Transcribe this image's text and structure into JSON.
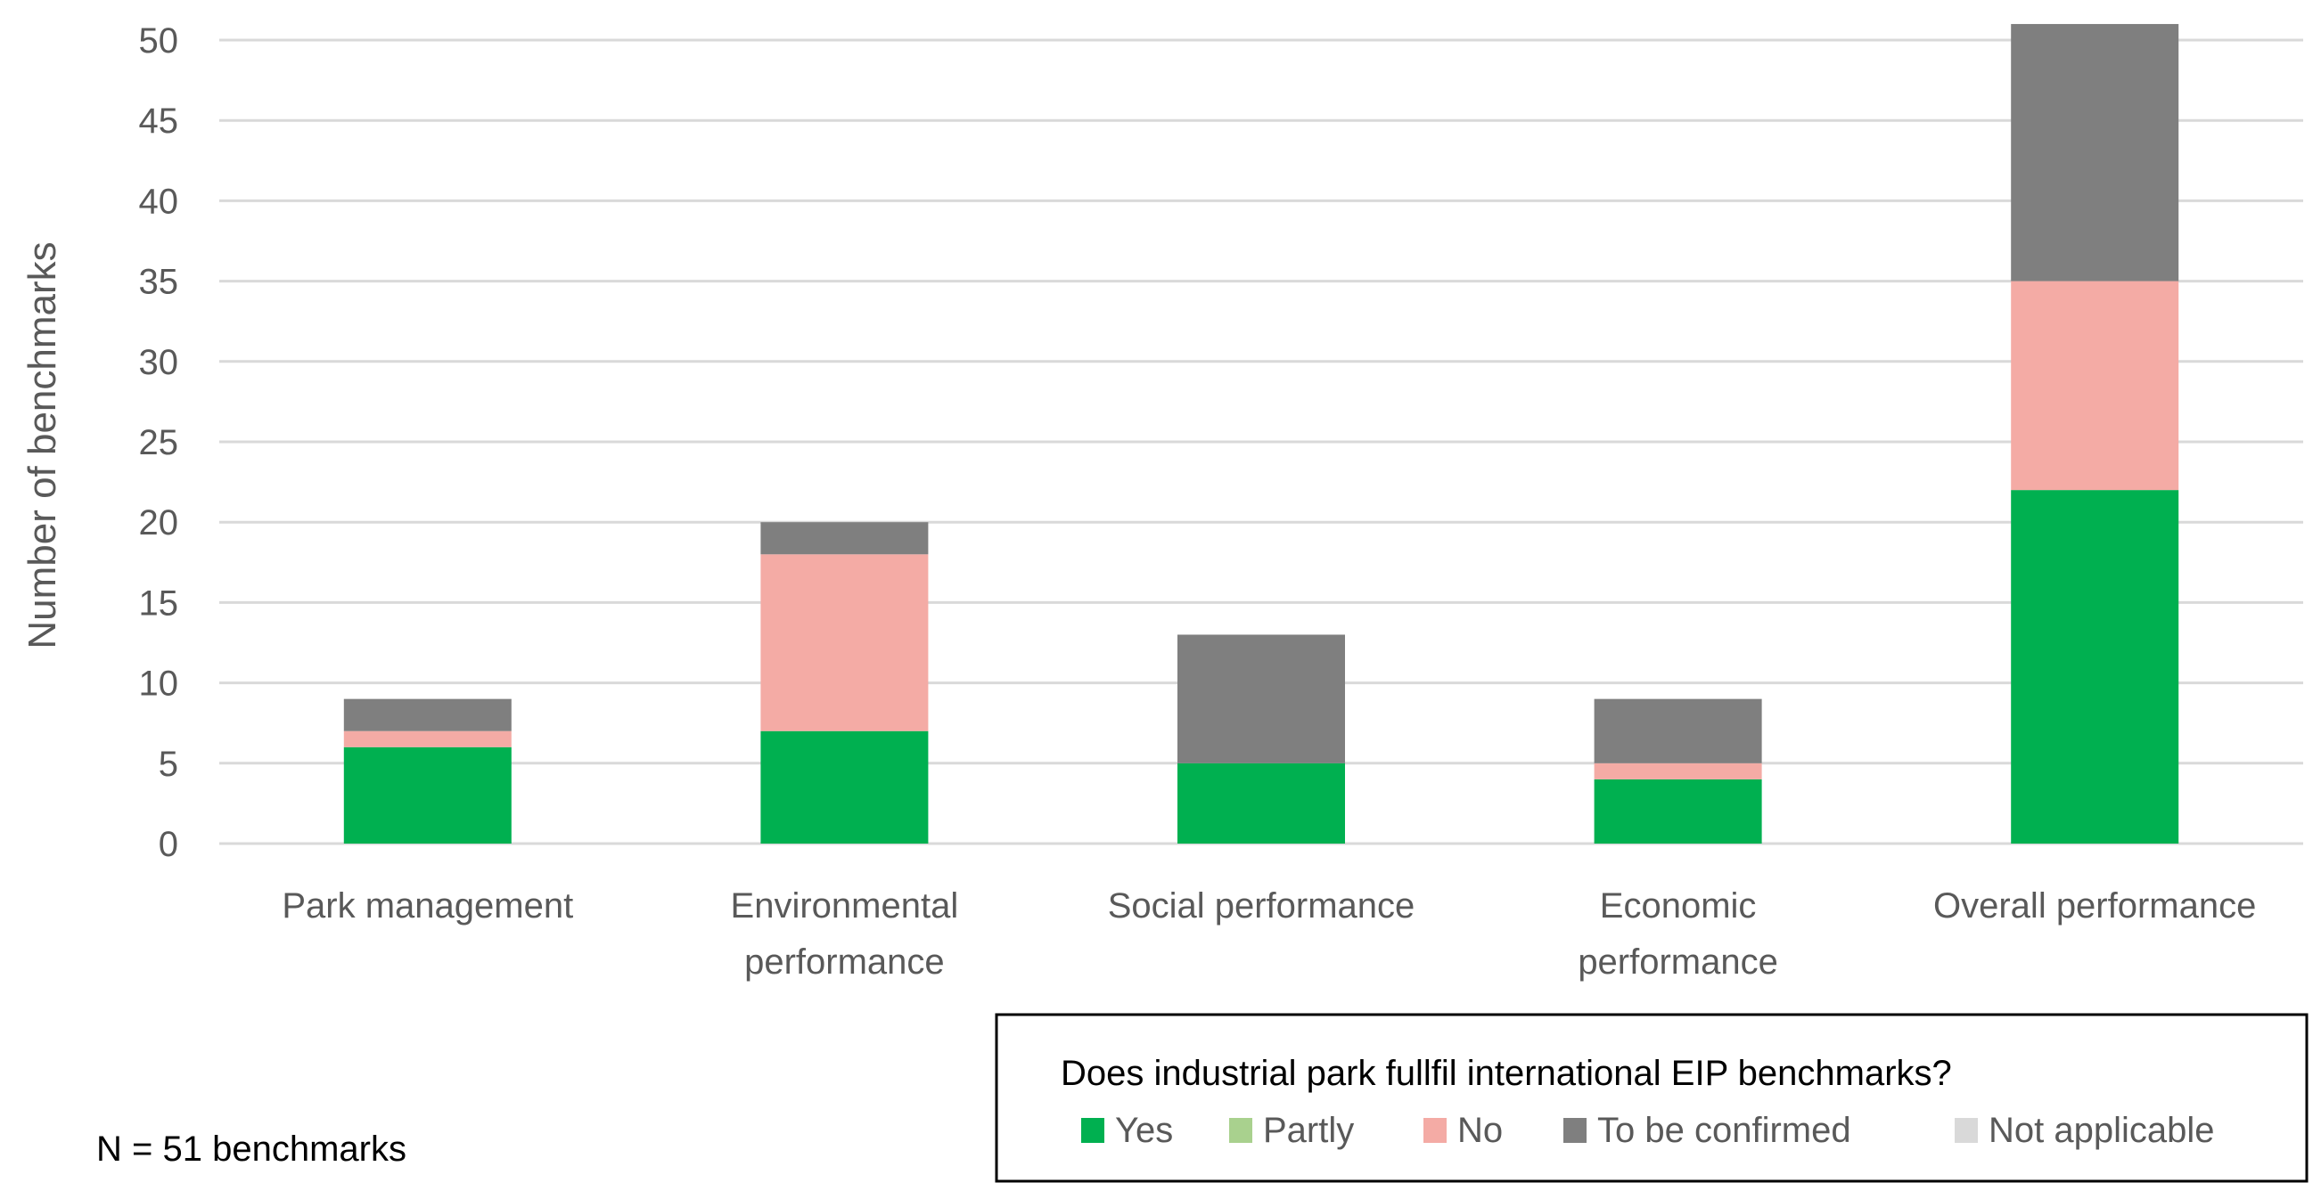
{
  "chart_data": {
    "type": "bar",
    "stacked": true,
    "categories": [
      [
        "Park management"
      ],
      [
        "Environmental",
        "performance"
      ],
      [
        "Social performance"
      ],
      [
        "Economic",
        "performance"
      ],
      [
        "Overall performance"
      ]
    ],
    "series": [
      {
        "name": "Yes",
        "color": "#00b050",
        "values": [
          6,
          7,
          5,
          4,
          22
        ]
      },
      {
        "name": "Partly",
        "color": "#a9d18e",
        "values": [
          0,
          0,
          0,
          0,
          0
        ]
      },
      {
        "name": "No",
        "color": "#f4aba5",
        "values": [
          1,
          11,
          0,
          1,
          13
        ]
      },
      {
        "name": "To be confirmed",
        "color": "#7f7f7f",
        "values": [
          2,
          2,
          8,
          4,
          16
        ]
      },
      {
        "name": "Not applicable",
        "color": "#d9d9d9",
        "values": [
          0,
          0,
          0,
          0,
          0
        ]
      }
    ],
    "ylabel": "Number of benchmarks",
    "xlabel": "",
    "ylim": [
      0,
      50
    ],
    "yticks": [
      0,
      5,
      10,
      15,
      20,
      25,
      30,
      35,
      40,
      45,
      50
    ],
    "grid": true,
    "legend_title": "Does industrial park fullfil international EIP benchmarks?",
    "legend_placement": "bottom-right",
    "note": "N = 51 benchmarks"
  }
}
